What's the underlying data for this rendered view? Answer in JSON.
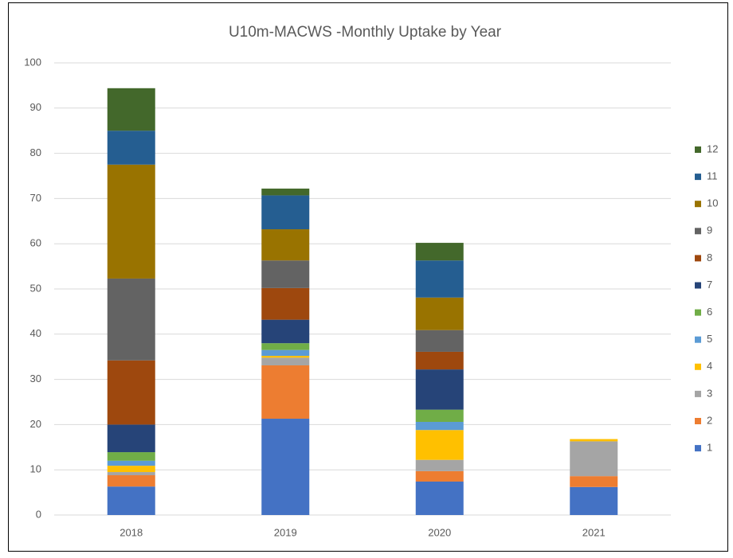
{
  "chart_data": {
    "type": "stacked_bar",
    "title": "U10m-MACWS -Monthly Uptake by Year",
    "categories": [
      "2018",
      "2019",
      "2020",
      "2021"
    ],
    "series": [
      {
        "name": "1",
        "color": "#4472c4",
        "values": [
          6.3,
          21.3,
          7.4,
          6.2
        ]
      },
      {
        "name": "2",
        "color": "#ed7d31",
        "values": [
          2.5,
          11.8,
          2.3,
          2.4
        ]
      },
      {
        "name": "3",
        "color": "#a5a5a5",
        "values": [
          0.7,
          1.7,
          2.5,
          7.7
        ]
      },
      {
        "name": "4",
        "color": "#ffc000",
        "values": [
          1.4,
          0.4,
          6.6,
          0.5
        ]
      },
      {
        "name": "5",
        "color": "#5b9bd5",
        "values": [
          1.1,
          1.3,
          1.8,
          0
        ]
      },
      {
        "name": "6",
        "color": "#70ad47",
        "values": [
          1.9,
          1.5,
          2.7,
          0
        ]
      },
      {
        "name": "7",
        "color": "#264478",
        "values": [
          6.1,
          5.2,
          8.9,
          0
        ]
      },
      {
        "name": "8",
        "color": "#9e480e",
        "values": [
          14.2,
          7.0,
          3.9,
          0
        ]
      },
      {
        "name": "9",
        "color": "#636363",
        "values": [
          18.1,
          6.1,
          4.8,
          0
        ]
      },
      {
        "name": "10",
        "color": "#997300",
        "values": [
          25.2,
          6.9,
          7.2,
          0
        ]
      },
      {
        "name": "11",
        "color": "#255e91",
        "values": [
          7.5,
          7.5,
          8.2,
          0
        ]
      },
      {
        "name": "12",
        "color": "#43682b",
        "values": [
          9.4,
          1.5,
          3.9,
          0
        ]
      }
    ],
    "ylim": [
      0,
      100
    ],
    "yticks": [
      0,
      10,
      20,
      30,
      40,
      50,
      60,
      70,
      80,
      90,
      100
    ],
    "grid": true,
    "legend": "right"
  }
}
